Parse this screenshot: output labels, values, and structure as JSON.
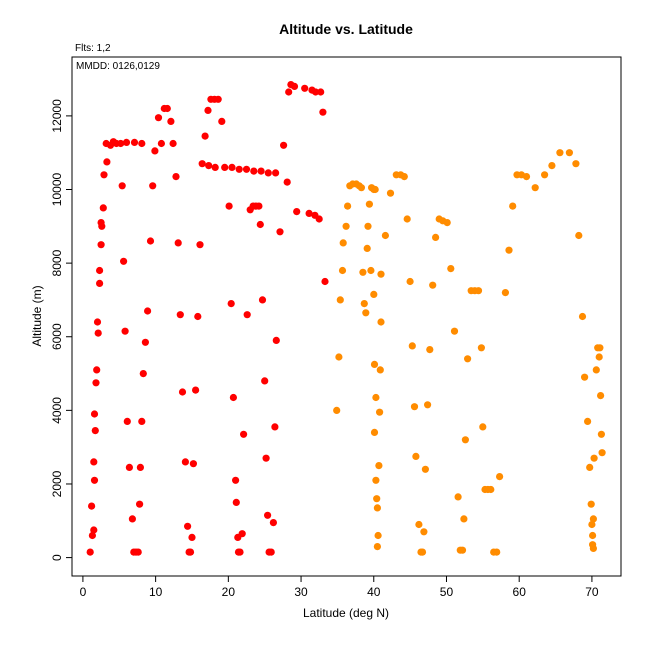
{
  "chart_data": {
    "type": "scatter",
    "title": "Altitude vs. Latitude",
    "subtitle": "Flts: 1,2",
    "annotation": "MMDD: 0126,0129",
    "xlabel": "Latitude (deg N)",
    "ylabel": "Altitude (m)",
    "xlim": [
      -1.5,
      74
    ],
    "ylim": [
      -500,
      13600
    ],
    "xticks": [
      0,
      10,
      20,
      30,
      40,
      50,
      60,
      70
    ],
    "yticks": [
      0,
      2000,
      4000,
      6000,
      8000,
      10000,
      12000
    ],
    "grid": false,
    "legend": "none",
    "series": [
      {
        "color": "#ff0000",
        "points": [
          [
            1.0,
            150
          ],
          [
            1.3,
            600
          ],
          [
            1.5,
            750
          ],
          [
            1.2,
            1400
          ],
          [
            1.6,
            2100
          ],
          [
            1.5,
            2600
          ],
          [
            1.7,
            3450
          ],
          [
            1.6,
            3900
          ],
          [
            1.8,
            4750
          ],
          [
            1.9,
            5100
          ],
          [
            2.1,
            6100
          ],
          [
            2.0,
            6400
          ],
          [
            2.3,
            7450
          ],
          [
            2.3,
            7800
          ],
          [
            2.5,
            8500
          ],
          [
            2.6,
            9000
          ],
          [
            2.5,
            9100
          ],
          [
            2.8,
            9500
          ],
          [
            2.9,
            10400
          ],
          [
            3.3,
            10750
          ],
          [
            3.2,
            11250
          ],
          [
            3.8,
            11200
          ],
          [
            4.2,
            11300
          ],
          [
            4.6,
            11250
          ],
          [
            5.2,
            11250
          ],
          [
            6.0,
            11280
          ],
          [
            7.1,
            11280
          ],
          [
            8.1,
            11250
          ],
          [
            5.4,
            10100
          ],
          [
            5.6,
            8050
          ],
          [
            5.8,
            6150
          ],
          [
            6.1,
            3700
          ],
          [
            6.4,
            2450
          ],
          [
            6.8,
            1050
          ],
          [
            7.0,
            150
          ],
          [
            7.3,
            150
          ],
          [
            7.6,
            150
          ],
          [
            7.8,
            1450
          ],
          [
            7.9,
            2450
          ],
          [
            8.1,
            3700
          ],
          [
            8.3,
            5000
          ],
          [
            8.6,
            5850
          ],
          [
            8.9,
            6700
          ],
          [
            9.3,
            8600
          ],
          [
            9.6,
            10100
          ],
          [
            9.9,
            11050
          ],
          [
            10.4,
            11950
          ],
          [
            10.8,
            11250
          ],
          [
            11.2,
            12200
          ],
          [
            11.6,
            12200
          ],
          [
            12.1,
            11850
          ],
          [
            12.4,
            11250
          ],
          [
            12.8,
            10350
          ],
          [
            13.1,
            8550
          ],
          [
            13.4,
            6600
          ],
          [
            13.7,
            4500
          ],
          [
            14.1,
            2600
          ],
          [
            14.4,
            850
          ],
          [
            14.6,
            150
          ],
          [
            14.8,
            150
          ],
          [
            15.0,
            550
          ],
          [
            15.2,
            2550
          ],
          [
            15.5,
            4550
          ],
          [
            15.8,
            6550
          ],
          [
            16.1,
            8500
          ],
          [
            16.4,
            10700
          ],
          [
            16.8,
            11450
          ],
          [
            17.2,
            12150
          ],
          [
            17.6,
            12450
          ],
          [
            18.1,
            12450
          ],
          [
            18.6,
            12450
          ],
          [
            19.1,
            11850
          ],
          [
            17.3,
            10650
          ],
          [
            18.2,
            10600
          ],
          [
            19.5,
            10600
          ],
          [
            20.5,
            10600
          ],
          [
            21.5,
            10550
          ],
          [
            22.5,
            10550
          ],
          [
            23.5,
            10500
          ],
          [
            24.5,
            10500
          ],
          [
            25.5,
            10450
          ],
          [
            26.5,
            10450
          ],
          [
            20.1,
            9550
          ],
          [
            20.4,
            6900
          ],
          [
            20.7,
            4350
          ],
          [
            21.0,
            2100
          ],
          [
            21.1,
            1500
          ],
          [
            21.3,
            550
          ],
          [
            21.4,
            150
          ],
          [
            21.6,
            150
          ],
          [
            21.9,
            650
          ],
          [
            22.1,
            3350
          ],
          [
            22.6,
            6600
          ],
          [
            23.0,
            9450
          ],
          [
            23.4,
            9550
          ],
          [
            23.8,
            9550
          ],
          [
            24.2,
            9550
          ],
          [
            24.4,
            9050
          ],
          [
            24.7,
            7000
          ],
          [
            25.0,
            4800
          ],
          [
            25.2,
            2700
          ],
          [
            25.4,
            1150
          ],
          [
            25.6,
            150
          ],
          [
            25.9,
            150
          ],
          [
            26.2,
            950
          ],
          [
            26.4,
            3550
          ],
          [
            26.6,
            5900
          ],
          [
            27.1,
            8850
          ],
          [
            27.6,
            11200
          ],
          [
            28.1,
            10200
          ],
          [
            28.3,
            12650
          ],
          [
            28.6,
            12850
          ],
          [
            29.1,
            12800
          ],
          [
            29.4,
            9400
          ],
          [
            30.5,
            12750
          ],
          [
            31.1,
            9350
          ],
          [
            31.5,
            12700
          ],
          [
            32.0,
            12650
          ],
          [
            31.9,
            9300
          ],
          [
            32.5,
            9200
          ],
          [
            32.7,
            12650
          ],
          [
            33.0,
            12100
          ],
          [
            33.3,
            7500
          ]
        ]
      },
      {
        "color": "#ff8c00",
        "points": [
          [
            34.9,
            4000
          ],
          [
            35.2,
            5450
          ],
          [
            35.4,
            7000
          ],
          [
            35.7,
            7800
          ],
          [
            35.8,
            8550
          ],
          [
            36.2,
            9000
          ],
          [
            36.4,
            9550
          ],
          [
            36.7,
            10100
          ],
          [
            37.1,
            10150
          ],
          [
            37.6,
            10150
          ],
          [
            38.0,
            10100
          ],
          [
            38.3,
            10050
          ],
          [
            38.5,
            7750
          ],
          [
            38.7,
            6900
          ],
          [
            38.9,
            6650
          ],
          [
            39.1,
            8400
          ],
          [
            39.2,
            9000
          ],
          [
            39.4,
            9600
          ],
          [
            39.7,
            10050
          ],
          [
            40.0,
            10000
          ],
          [
            40.2,
            10000
          ],
          [
            39.6,
            7800
          ],
          [
            40.0,
            7150
          ],
          [
            40.1,
            5250
          ],
          [
            40.3,
            4350
          ],
          [
            40.1,
            3400
          ],
          [
            40.3,
            2100
          ],
          [
            40.4,
            1600
          ],
          [
            40.5,
            1350
          ],
          [
            40.6,
            600
          ],
          [
            40.5,
            300
          ],
          [
            40.7,
            2500
          ],
          [
            40.8,
            3950
          ],
          [
            40.9,
            5100
          ],
          [
            41.0,
            6400
          ],
          [
            41.0,
            7700
          ],
          [
            41.6,
            8750
          ],
          [
            42.3,
            9900
          ],
          [
            43.1,
            10400
          ],
          [
            43.7,
            10400
          ],
          [
            44.2,
            10350
          ],
          [
            44.6,
            9200
          ],
          [
            45.0,
            7500
          ],
          [
            45.3,
            5750
          ],
          [
            45.6,
            4100
          ],
          [
            45.8,
            2750
          ],
          [
            46.2,
            900
          ],
          [
            46.5,
            150
          ],
          [
            46.7,
            150
          ],
          [
            46.9,
            700
          ],
          [
            47.1,
            2400
          ],
          [
            47.4,
            4150
          ],
          [
            47.7,
            5650
          ],
          [
            48.1,
            7400
          ],
          [
            48.5,
            8700
          ],
          [
            49.0,
            9200
          ],
          [
            49.5,
            9150
          ],
          [
            50.1,
            9100
          ],
          [
            50.6,
            7850
          ],
          [
            51.1,
            6150
          ],
          [
            51.6,
            1650
          ],
          [
            51.9,
            200
          ],
          [
            52.2,
            200
          ],
          [
            52.4,
            1050
          ],
          [
            52.6,
            3200
          ],
          [
            52.9,
            5400
          ],
          [
            53.4,
            7250
          ],
          [
            53.9,
            7250
          ],
          [
            54.4,
            7250
          ],
          [
            55.0,
            3550
          ],
          [
            54.8,
            5700
          ],
          [
            55.3,
            1850
          ],
          [
            55.7,
            1850
          ],
          [
            56.1,
            1850
          ],
          [
            56.5,
            150
          ],
          [
            56.9,
            150
          ],
          [
            57.3,
            2200
          ],
          [
            58.1,
            7200
          ],
          [
            58.6,
            8350
          ],
          [
            59.1,
            9550
          ],
          [
            59.7,
            10400
          ],
          [
            60.3,
            10400
          ],
          [
            61.0,
            10350
          ],
          [
            62.2,
            10050
          ],
          [
            63.5,
            10400
          ],
          [
            64.5,
            10650
          ],
          [
            65.6,
            11000
          ],
          [
            66.9,
            11000
          ],
          [
            67.8,
            10700
          ],
          [
            68.2,
            8750
          ],
          [
            68.7,
            6550
          ],
          [
            69.0,
            4900
          ],
          [
            69.4,
            3700
          ],
          [
            69.7,
            2450
          ],
          [
            69.9,
            1450
          ],
          [
            70.0,
            900
          ],
          [
            70.2,
            1050
          ],
          [
            70.1,
            600
          ],
          [
            70.1,
            350
          ],
          [
            70.2,
            250
          ],
          [
            70.3,
            2700
          ],
          [
            70.6,
            5100
          ],
          [
            70.8,
            5700
          ],
          [
            71.0,
            5450
          ],
          [
            71.1,
            5700
          ],
          [
            71.2,
            4400
          ],
          [
            71.3,
            3350
          ],
          [
            71.4,
            2850
          ]
        ]
      }
    ]
  }
}
